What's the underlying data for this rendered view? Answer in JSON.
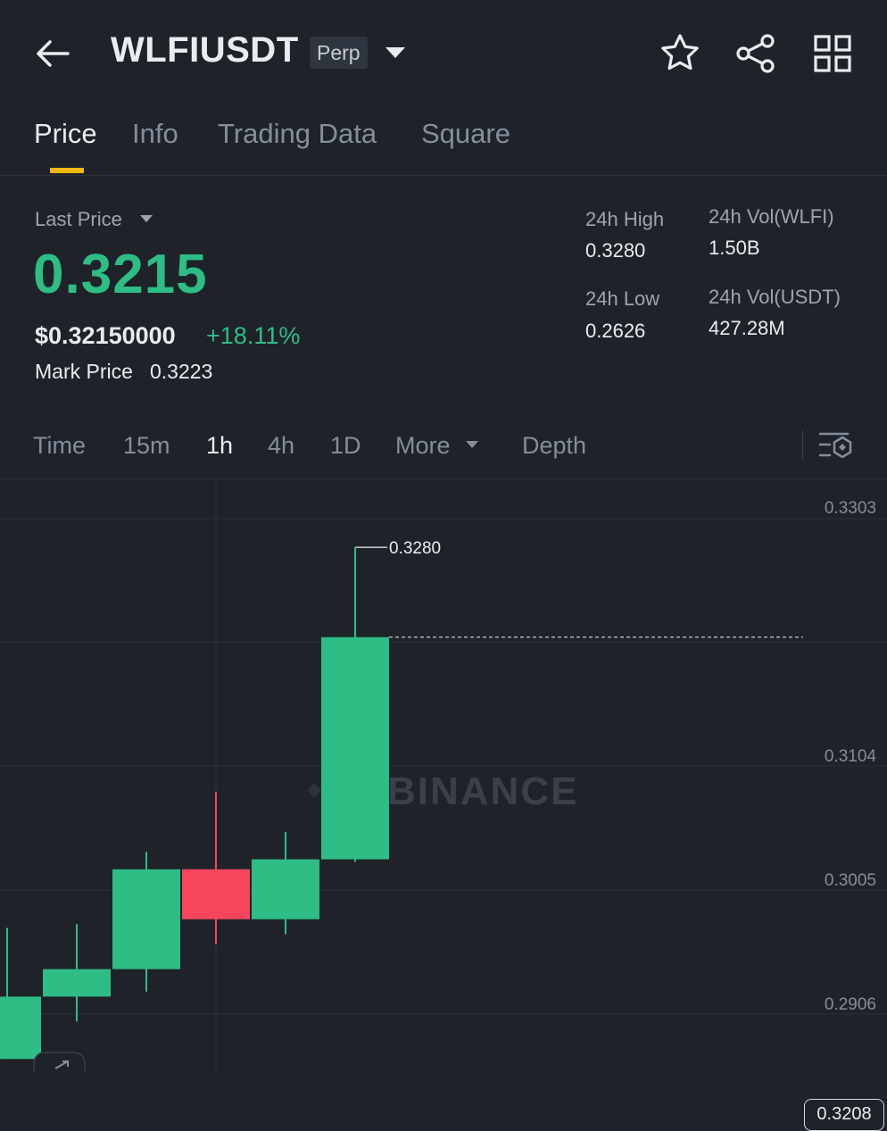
{
  "header": {
    "symbol": "WLFIUSDT",
    "badge": "Perp",
    "icons": [
      "arrow-left-icon",
      "caret-down-icon",
      "star-icon",
      "share-icon",
      "grid-icon"
    ]
  },
  "tabs": [
    {
      "label": "Price",
      "active": true
    },
    {
      "label": "Info"
    },
    {
      "label": "Trading Data"
    },
    {
      "label": "Square"
    }
  ],
  "ticker": {
    "last_price_label": "Last Price",
    "last_price": "0.3215",
    "usd_price": "$0.32150000",
    "change_pct": "+18.11%",
    "mark_price_label": "Mark Price",
    "mark_price": "0.3223",
    "high_label": "24h High",
    "high": "0.3280",
    "low_label": "24h Low",
    "low": "0.2626",
    "vol_base_label": "24h Vol(WLFI)",
    "vol_base": "1.50B",
    "vol_quote_label": "24h Vol(USDT)",
    "vol_quote": "427.28M"
  },
  "timeframes": {
    "items": [
      "Time",
      "15m",
      "1h",
      "4h",
      "1D",
      "More",
      "Depth"
    ],
    "active": "1h"
  },
  "colors": {
    "up": "#2ebd85",
    "down": "#f6465d",
    "accent": "#f0b90b",
    "background": "#1f2329"
  },
  "chart_data": {
    "type": "candlestick",
    "watermark": "BINANCE",
    "y_ticks": [
      "0.3303",
      "0.3104",
      "0.3005",
      "0.2906"
    ],
    "ylim": [
      0.287,
      0.333
    ],
    "current_price_tag": "0.3208",
    "current_price": 0.3208,
    "high_label": "0.3280",
    "high_value": 0.328,
    "candles": [
      {
        "open": 0.287,
        "close": 0.292,
        "high": 0.2975,
        "low": 0.287
      },
      {
        "open": 0.292,
        "close": 0.2942,
        "high": 0.2978,
        "low": 0.29
      },
      {
        "open": 0.2942,
        "close": 0.3022,
        "high": 0.3036,
        "low": 0.2924
      },
      {
        "open": 0.3022,
        "close": 0.2982,
        "high": 0.3084,
        "low": 0.2962
      },
      {
        "open": 0.2982,
        "close": 0.303,
        "high": 0.3052,
        "low": 0.297
      },
      {
        "open": 0.303,
        "close": 0.3208,
        "high": 0.328,
        "low": 0.3028
      }
    ]
  }
}
